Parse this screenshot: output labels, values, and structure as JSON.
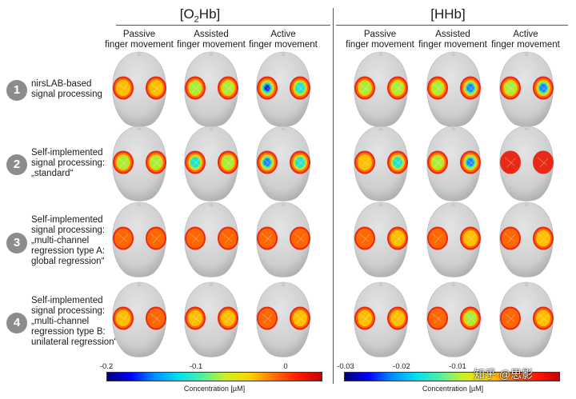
{
  "panels": [
    {
      "title_pre": "[O",
      "title_sub": "2",
      "title_post": "Hb]",
      "columns": [
        {
          "line1": "Passive",
          "line2": "finger movement"
        },
        {
          "line1": "Assisted",
          "line2": "finger movement"
        },
        {
          "line1": "Active",
          "line2": "finger movement"
        }
      ],
      "colorbar": {
        "ticks": [
          "-0.2",
          "-0.1",
          "0"
        ],
        "label": "Concentration [µM]"
      }
    },
    {
      "title_pre": "[HHb]",
      "title_sub": "",
      "title_post": "",
      "columns": [
        {
          "line1": "Passive",
          "line2": "finger movement"
        },
        {
          "line1": "Assisted",
          "line2": "finger movement"
        },
        {
          "line1": "Active",
          "line2": "finger movement"
        }
      ],
      "colorbar": {
        "ticks": [
          "-0.03",
          "-0.02",
          "-0.01"
        ],
        "label": "Concentration [µM]"
      }
    }
  ],
  "rows": [
    {
      "number": "1",
      "lines": [
        "nirsLAB-based",
        "signal processing"
      ]
    },
    {
      "number": "2",
      "lines": [
        "Self-implemented",
        "signal processing:",
        "„standard“"
      ]
    },
    {
      "number": "3",
      "lines": [
        "Self-implemented",
        "signal processing:",
        "„multi-channel",
        "regression type A:",
        "global regression“"
      ]
    },
    {
      "number": "4",
      "lines": [
        "Self-implemented",
        "signal processing:",
        "„multi-channel",
        "regression type B:",
        "unilateral regression“"
      ]
    }
  ],
  "activation": {
    "O2Hb": [
      [
        0.45,
        0.45
      ],
      [
        0.55,
        0.55
      ],
      [
        0.95,
        0.75
      ],
      [
        0.55,
        0.55
      ],
      [
        0.7,
        0.55
      ],
      [
        0.9,
        0.75
      ],
      [
        0.2,
        0.2
      ],
      [
        0.2,
        0.2
      ],
      [
        0.2,
        0.2
      ],
      [
        0.35,
        0.3
      ],
      [
        0.35,
        0.35
      ],
      [
        0.25,
        0.4
      ]
    ],
    "HHb": [
      [
        0.55,
        0.55
      ],
      [
        0.55,
        0.9
      ],
      [
        0.5,
        0.9
      ],
      [
        0.45,
        0.65
      ],
      [
        0.5,
        0.85
      ],
      [
        0.1,
        0.1
      ],
      [
        0.25,
        0.35
      ],
      [
        0.3,
        0.35
      ],
      [
        0.25,
        0.4
      ],
      [
        0.45,
        0.45
      ],
      [
        0.3,
        0.5
      ],
      [
        0.15,
        0.4
      ]
    ]
  },
  "colors": {
    "background": "#ffffff",
    "head": "#d6d6d6",
    "circle": "#8c8c8c"
  },
  "watermark": "知乎 @思影"
}
